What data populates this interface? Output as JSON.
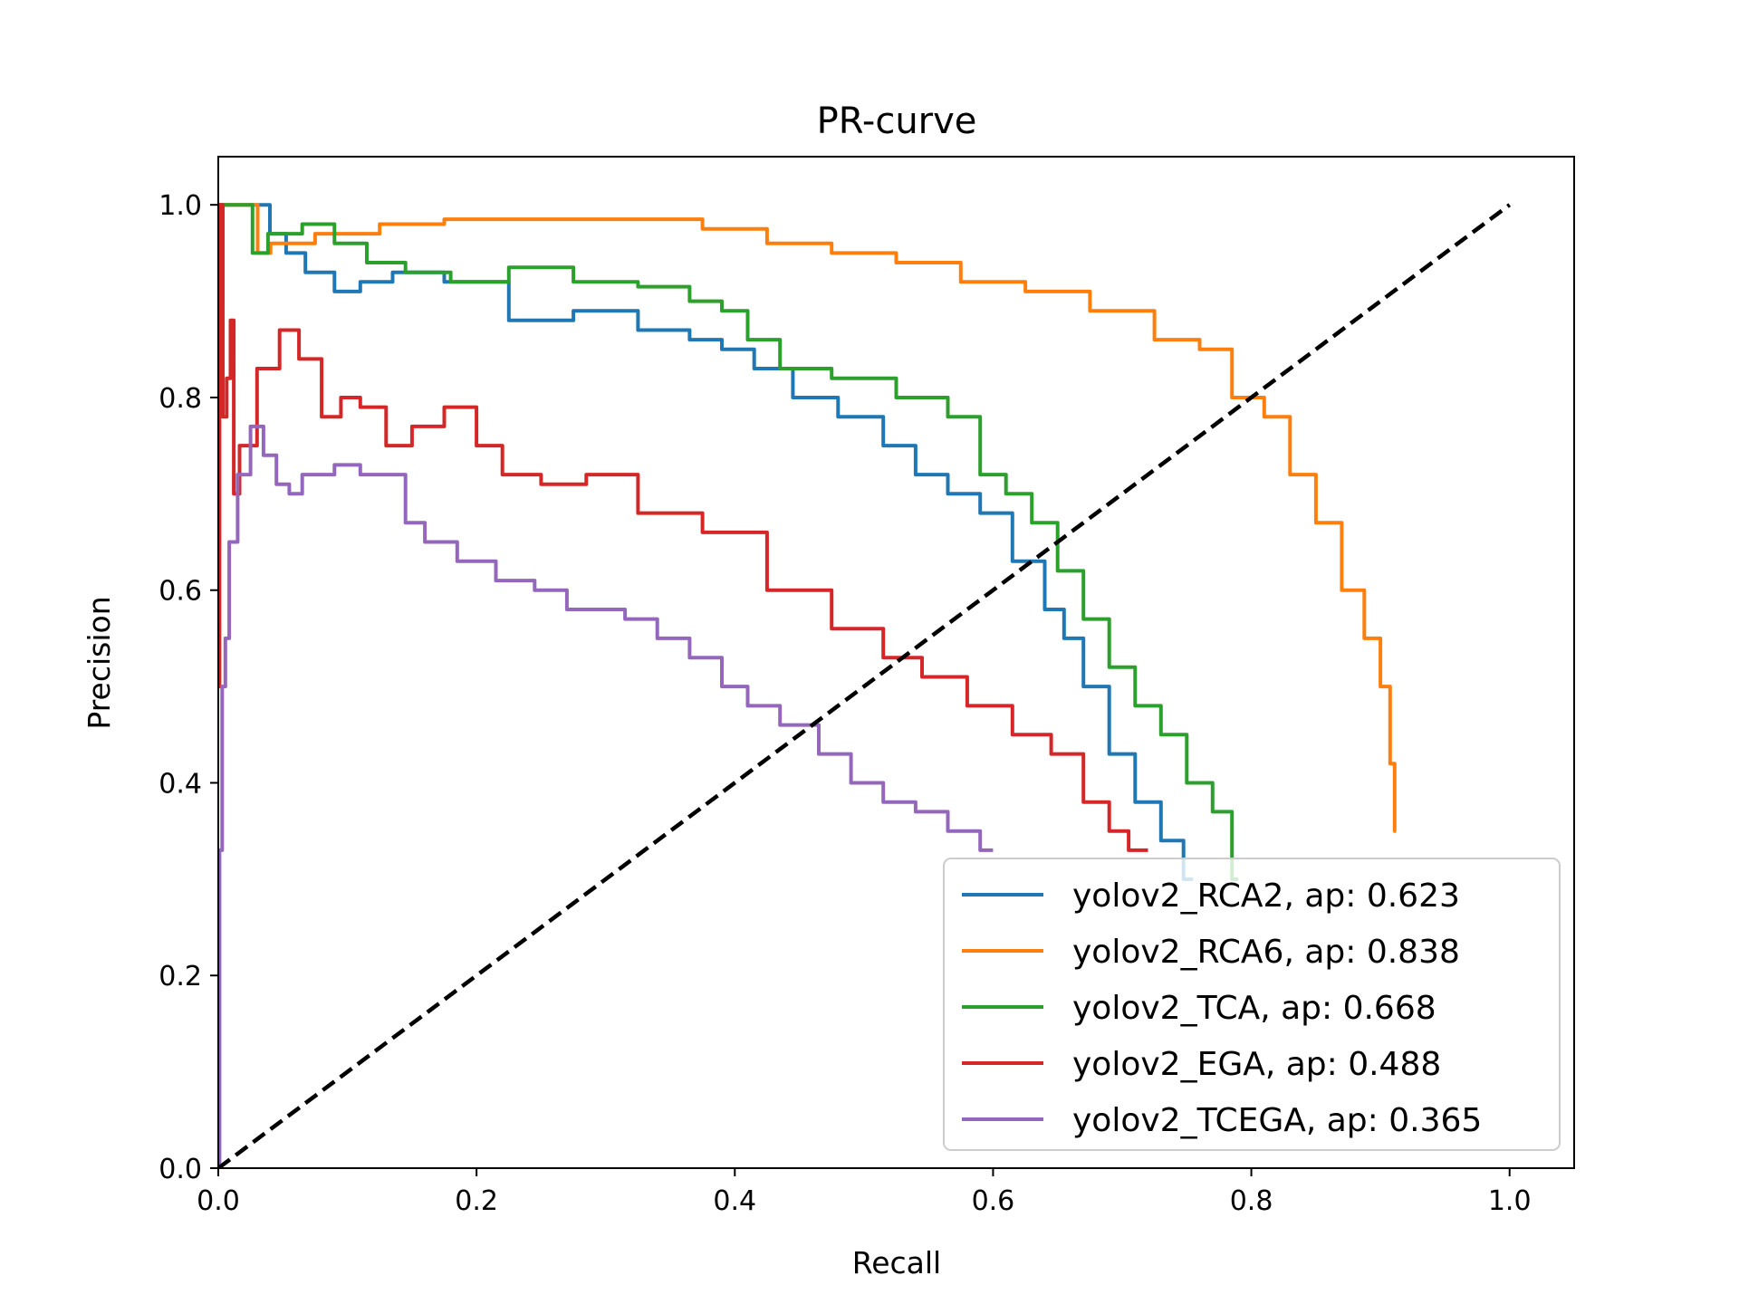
{
  "chart_data": {
    "type": "line",
    "title": "PR-curve",
    "xlabel": "Recall",
    "ylabel": "Precision",
    "xlim": [
      0.0,
      1.05
    ],
    "ylim": [
      0.0,
      1.05
    ],
    "xticks": [
      0.0,
      0.2,
      0.4,
      0.6,
      0.8,
      1.0
    ],
    "yticks": [
      0.0,
      0.2,
      0.4,
      0.6,
      0.8,
      1.0
    ],
    "xtick_labels": [
      "0.0",
      "0.2",
      "0.4",
      "0.6",
      "0.8",
      "1.0"
    ],
    "ytick_labels": [
      "0.0",
      "0.2",
      "0.4",
      "0.6",
      "0.8",
      "1.0"
    ],
    "legend_position": "lower-right",
    "reference_line": {
      "style": "dashed",
      "color": "#000000",
      "x": [
        0.0,
        1.0
      ],
      "y": [
        0.0,
        1.0
      ]
    },
    "series": [
      {
        "name": "yolov2_RCA2, ap: 0.623",
        "label": "yolov2_RCA2, ap: 0.623",
        "color": "#1f77b4",
        "x": [
          0.0,
          0.003,
          0.03,
          0.05,
          0.055,
          0.08,
          0.1,
          0.12,
          0.15,
          0.2,
          0.25,
          0.3,
          0.35,
          0.38,
          0.4,
          0.43,
          0.46,
          0.5,
          0.53,
          0.55,
          0.58,
          0.6,
          0.63,
          0.65,
          0.66,
          0.68,
          0.7,
          0.72,
          0.74,
          0.755
        ],
        "y": [
          1.0,
          1.0,
          1.0,
          0.97,
          0.95,
          0.93,
          0.91,
          0.92,
          0.93,
          0.92,
          0.88,
          0.89,
          0.87,
          0.86,
          0.85,
          0.83,
          0.8,
          0.78,
          0.75,
          0.72,
          0.7,
          0.68,
          0.63,
          0.58,
          0.55,
          0.5,
          0.43,
          0.38,
          0.34,
          0.3
        ]
      },
      {
        "name": "yolov2_RCA6, ap: 0.838",
        "label": "yolov2_RCA6, ap: 0.838",
        "color": "#ff7f0e",
        "x": [
          0.0,
          0.03,
          0.031,
          0.05,
          0.1,
          0.15,
          0.2,
          0.25,
          0.3,
          0.35,
          0.4,
          0.45,
          0.5,
          0.55,
          0.6,
          0.65,
          0.7,
          0.75,
          0.77,
          0.8,
          0.82,
          0.84,
          0.86,
          0.88,
          0.895,
          0.905,
          0.91,
          0.912
        ],
        "y": [
          1.0,
          1.0,
          0.95,
          0.96,
          0.97,
          0.98,
          0.985,
          0.985,
          0.985,
          0.985,
          0.975,
          0.96,
          0.95,
          0.94,
          0.92,
          0.91,
          0.89,
          0.86,
          0.85,
          0.8,
          0.78,
          0.72,
          0.67,
          0.6,
          0.55,
          0.5,
          0.42,
          0.35
        ]
      },
      {
        "name": "yolov2_TCA, ap: 0.668",
        "label": "yolov2_TCA, ap: 0.668",
        "color": "#2ca02c",
        "x": [
          0.0,
          0.026,
          0.027,
          0.05,
          0.08,
          0.1,
          0.13,
          0.16,
          0.2,
          0.25,
          0.3,
          0.35,
          0.38,
          0.4,
          0.42,
          0.45,
          0.5,
          0.55,
          0.58,
          0.6,
          0.62,
          0.64,
          0.66,
          0.68,
          0.7,
          0.72,
          0.74,
          0.76,
          0.78,
          0.79
        ],
        "y": [
          1.0,
          1.0,
          0.95,
          0.97,
          0.98,
          0.96,
          0.94,
          0.93,
          0.92,
          0.935,
          0.92,
          0.915,
          0.9,
          0.89,
          0.86,
          0.83,
          0.82,
          0.8,
          0.78,
          0.72,
          0.7,
          0.67,
          0.62,
          0.57,
          0.52,
          0.48,
          0.45,
          0.4,
          0.37,
          0.3
        ]
      },
      {
        "name": "yolov2_EGA, ap: 0.488",
        "label": "yolov2_EGA, ap: 0.488",
        "color": "#d62728",
        "x": [
          0.0,
          0.002,
          0.005,
          0.008,
          0.011,
          0.013,
          0.02,
          0.04,
          0.055,
          0.07,
          0.09,
          0.1,
          0.12,
          0.14,
          0.16,
          0.19,
          0.21,
          0.23,
          0.27,
          0.3,
          0.35,
          0.4,
          0.45,
          0.5,
          0.53,
          0.56,
          0.6,
          0.63,
          0.66,
          0.68,
          0.7,
          0.71,
          0.72
        ],
        "y": [
          0.5,
          1.0,
          0.78,
          0.82,
          0.88,
          0.7,
          0.75,
          0.83,
          0.87,
          0.84,
          0.78,
          0.8,
          0.79,
          0.75,
          0.77,
          0.79,
          0.75,
          0.72,
          0.71,
          0.72,
          0.68,
          0.66,
          0.6,
          0.56,
          0.53,
          0.51,
          0.48,
          0.45,
          0.43,
          0.38,
          0.35,
          0.33,
          0.33
        ]
      },
      {
        "name": "yolov2_TCEGA, ap: 0.365",
        "label": "yolov2_TCEGA, ap: 0.365",
        "color": "#9467bd",
        "x": [
          0.0,
          0.002,
          0.004,
          0.007,
          0.01,
          0.02,
          0.03,
          0.04,
          0.05,
          0.06,
          0.07,
          0.08,
          0.1,
          0.12,
          0.14,
          0.15,
          0.17,
          0.2,
          0.23,
          0.26,
          0.28,
          0.3,
          0.33,
          0.35,
          0.38,
          0.4,
          0.42,
          0.45,
          0.48,
          0.5,
          0.53,
          0.55,
          0.58,
          0.6
        ],
        "y": [
          0.0,
          0.33,
          0.5,
          0.55,
          0.65,
          0.72,
          0.77,
          0.74,
          0.71,
          0.7,
          0.72,
          0.72,
          0.73,
          0.72,
          0.72,
          0.67,
          0.65,
          0.63,
          0.61,
          0.6,
          0.58,
          0.58,
          0.57,
          0.55,
          0.53,
          0.5,
          0.48,
          0.46,
          0.43,
          0.4,
          0.38,
          0.37,
          0.35,
          0.33
        ]
      }
    ]
  }
}
